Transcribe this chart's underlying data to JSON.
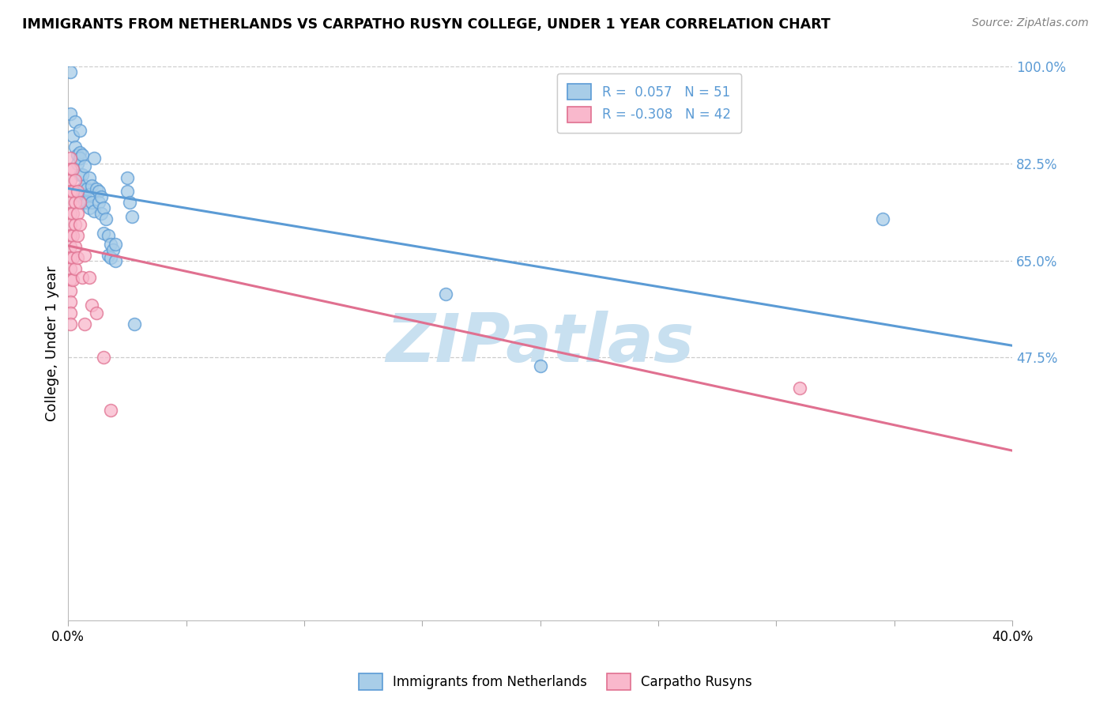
{
  "title": "IMMIGRANTS FROM NETHERLANDS VS CARPATHO RUSYN COLLEGE, UNDER 1 YEAR CORRELATION CHART",
  "source": "Source: ZipAtlas.com",
  "ylabel": "College, Under 1 year",
  "xlim": [
    0.0,
    0.4
  ],
  "ylim": [
    0.0,
    1.0
  ],
  "R_blue": 0.057,
  "N_blue": 51,
  "R_pink": -0.308,
  "N_pink": 42,
  "legend_label_blue": "Immigrants from Netherlands",
  "legend_label_pink": "Carpatho Rusyns",
  "blue_color": "#a8cde8",
  "blue_edge_color": "#5b9bd5",
  "pink_color": "#f9b8cc",
  "pink_edge_color": "#e07090",
  "blue_line_color": "#5b9bd5",
  "pink_line_color": "#e07090",
  "right_tick_color": "#5b9bd5",
  "watermark_text": "ZIPatlas",
  "watermark_color": "#c8e0f0",
  "grid_color": "#cccccc",
  "grid_style": "--",
  "yticks_right_pos": [
    0.475,
    0.65,
    0.825,
    1.0
  ],
  "yticks_right_labels": [
    "47.5%",
    "65.0%",
    "82.5%",
    "100.0%"
  ],
  "yticks_grid_pos": [
    0.475,
    0.65,
    0.825,
    1.0
  ],
  "xtick_vals": [
    0.0,
    0.05,
    0.1,
    0.15,
    0.2,
    0.25,
    0.3,
    0.35,
    0.4
  ],
  "xtick_labels": [
    "0.0%",
    "",
    "",
    "",
    "",
    "",
    "",
    "",
    "40.0%"
  ],
  "blue_scatter": [
    [
      0.001,
      0.99
    ],
    [
      0.001,
      0.915
    ],
    [
      0.002,
      0.875
    ],
    [
      0.003,
      0.9
    ],
    [
      0.003,
      0.855
    ],
    [
      0.004,
      0.84
    ],
    [
      0.004,
      0.825
    ],
    [
      0.005,
      0.885
    ],
    [
      0.005,
      0.845
    ],
    [
      0.005,
      0.805
    ],
    [
      0.005,
      0.835
    ],
    [
      0.006,
      0.84
    ],
    [
      0.006,
      0.805
    ],
    [
      0.006,
      0.78
    ],
    [
      0.006,
      0.765
    ],
    [
      0.007,
      0.82
    ],
    [
      0.007,
      0.785
    ],
    [
      0.007,
      0.77
    ],
    [
      0.007,
      0.755
    ],
    [
      0.008,
      0.78
    ],
    [
      0.008,
      0.755
    ],
    [
      0.009,
      0.8
    ],
    [
      0.009,
      0.77
    ],
    [
      0.009,
      0.745
    ],
    [
      0.01,
      0.785
    ],
    [
      0.01,
      0.755
    ],
    [
      0.011,
      0.835
    ],
    [
      0.011,
      0.74
    ],
    [
      0.012,
      0.78
    ],
    [
      0.013,
      0.775
    ],
    [
      0.013,
      0.755
    ],
    [
      0.014,
      0.765
    ],
    [
      0.014,
      0.735
    ],
    [
      0.015,
      0.745
    ],
    [
      0.015,
      0.7
    ],
    [
      0.016,
      0.725
    ],
    [
      0.017,
      0.695
    ],
    [
      0.017,
      0.66
    ],
    [
      0.018,
      0.68
    ],
    [
      0.018,
      0.655
    ],
    [
      0.019,
      0.67
    ],
    [
      0.02,
      0.68
    ],
    [
      0.02,
      0.65
    ],
    [
      0.025,
      0.8
    ],
    [
      0.025,
      0.775
    ],
    [
      0.026,
      0.755
    ],
    [
      0.027,
      0.73
    ],
    [
      0.028,
      0.535
    ],
    [
      0.16,
      0.59
    ],
    [
      0.2,
      0.46
    ],
    [
      0.345,
      0.725
    ]
  ],
  "pink_scatter": [
    [
      0.001,
      0.835
    ],
    [
      0.001,
      0.815
    ],
    [
      0.001,
      0.795
    ],
    [
      0.001,
      0.775
    ],
    [
      0.001,
      0.755
    ],
    [
      0.001,
      0.735
    ],
    [
      0.001,
      0.715
    ],
    [
      0.001,
      0.695
    ],
    [
      0.001,
      0.675
    ],
    [
      0.001,
      0.655
    ],
    [
      0.001,
      0.635
    ],
    [
      0.001,
      0.615
    ],
    [
      0.001,
      0.595
    ],
    [
      0.001,
      0.575
    ],
    [
      0.001,
      0.555
    ],
    [
      0.001,
      0.535
    ],
    [
      0.002,
      0.815
    ],
    [
      0.002,
      0.775
    ],
    [
      0.002,
      0.735
    ],
    [
      0.002,
      0.695
    ],
    [
      0.002,
      0.655
    ],
    [
      0.002,
      0.615
    ],
    [
      0.003,
      0.795
    ],
    [
      0.003,
      0.755
    ],
    [
      0.003,
      0.715
    ],
    [
      0.003,
      0.675
    ],
    [
      0.003,
      0.635
    ],
    [
      0.004,
      0.775
    ],
    [
      0.004,
      0.735
    ],
    [
      0.004,
      0.695
    ],
    [
      0.004,
      0.655
    ],
    [
      0.005,
      0.755
    ],
    [
      0.005,
      0.715
    ],
    [
      0.006,
      0.62
    ],
    [
      0.007,
      0.66
    ],
    [
      0.007,
      0.535
    ],
    [
      0.009,
      0.62
    ],
    [
      0.01,
      0.57
    ],
    [
      0.012,
      0.555
    ],
    [
      0.015,
      0.475
    ],
    [
      0.018,
      0.38
    ],
    [
      0.31,
      0.42
    ]
  ]
}
